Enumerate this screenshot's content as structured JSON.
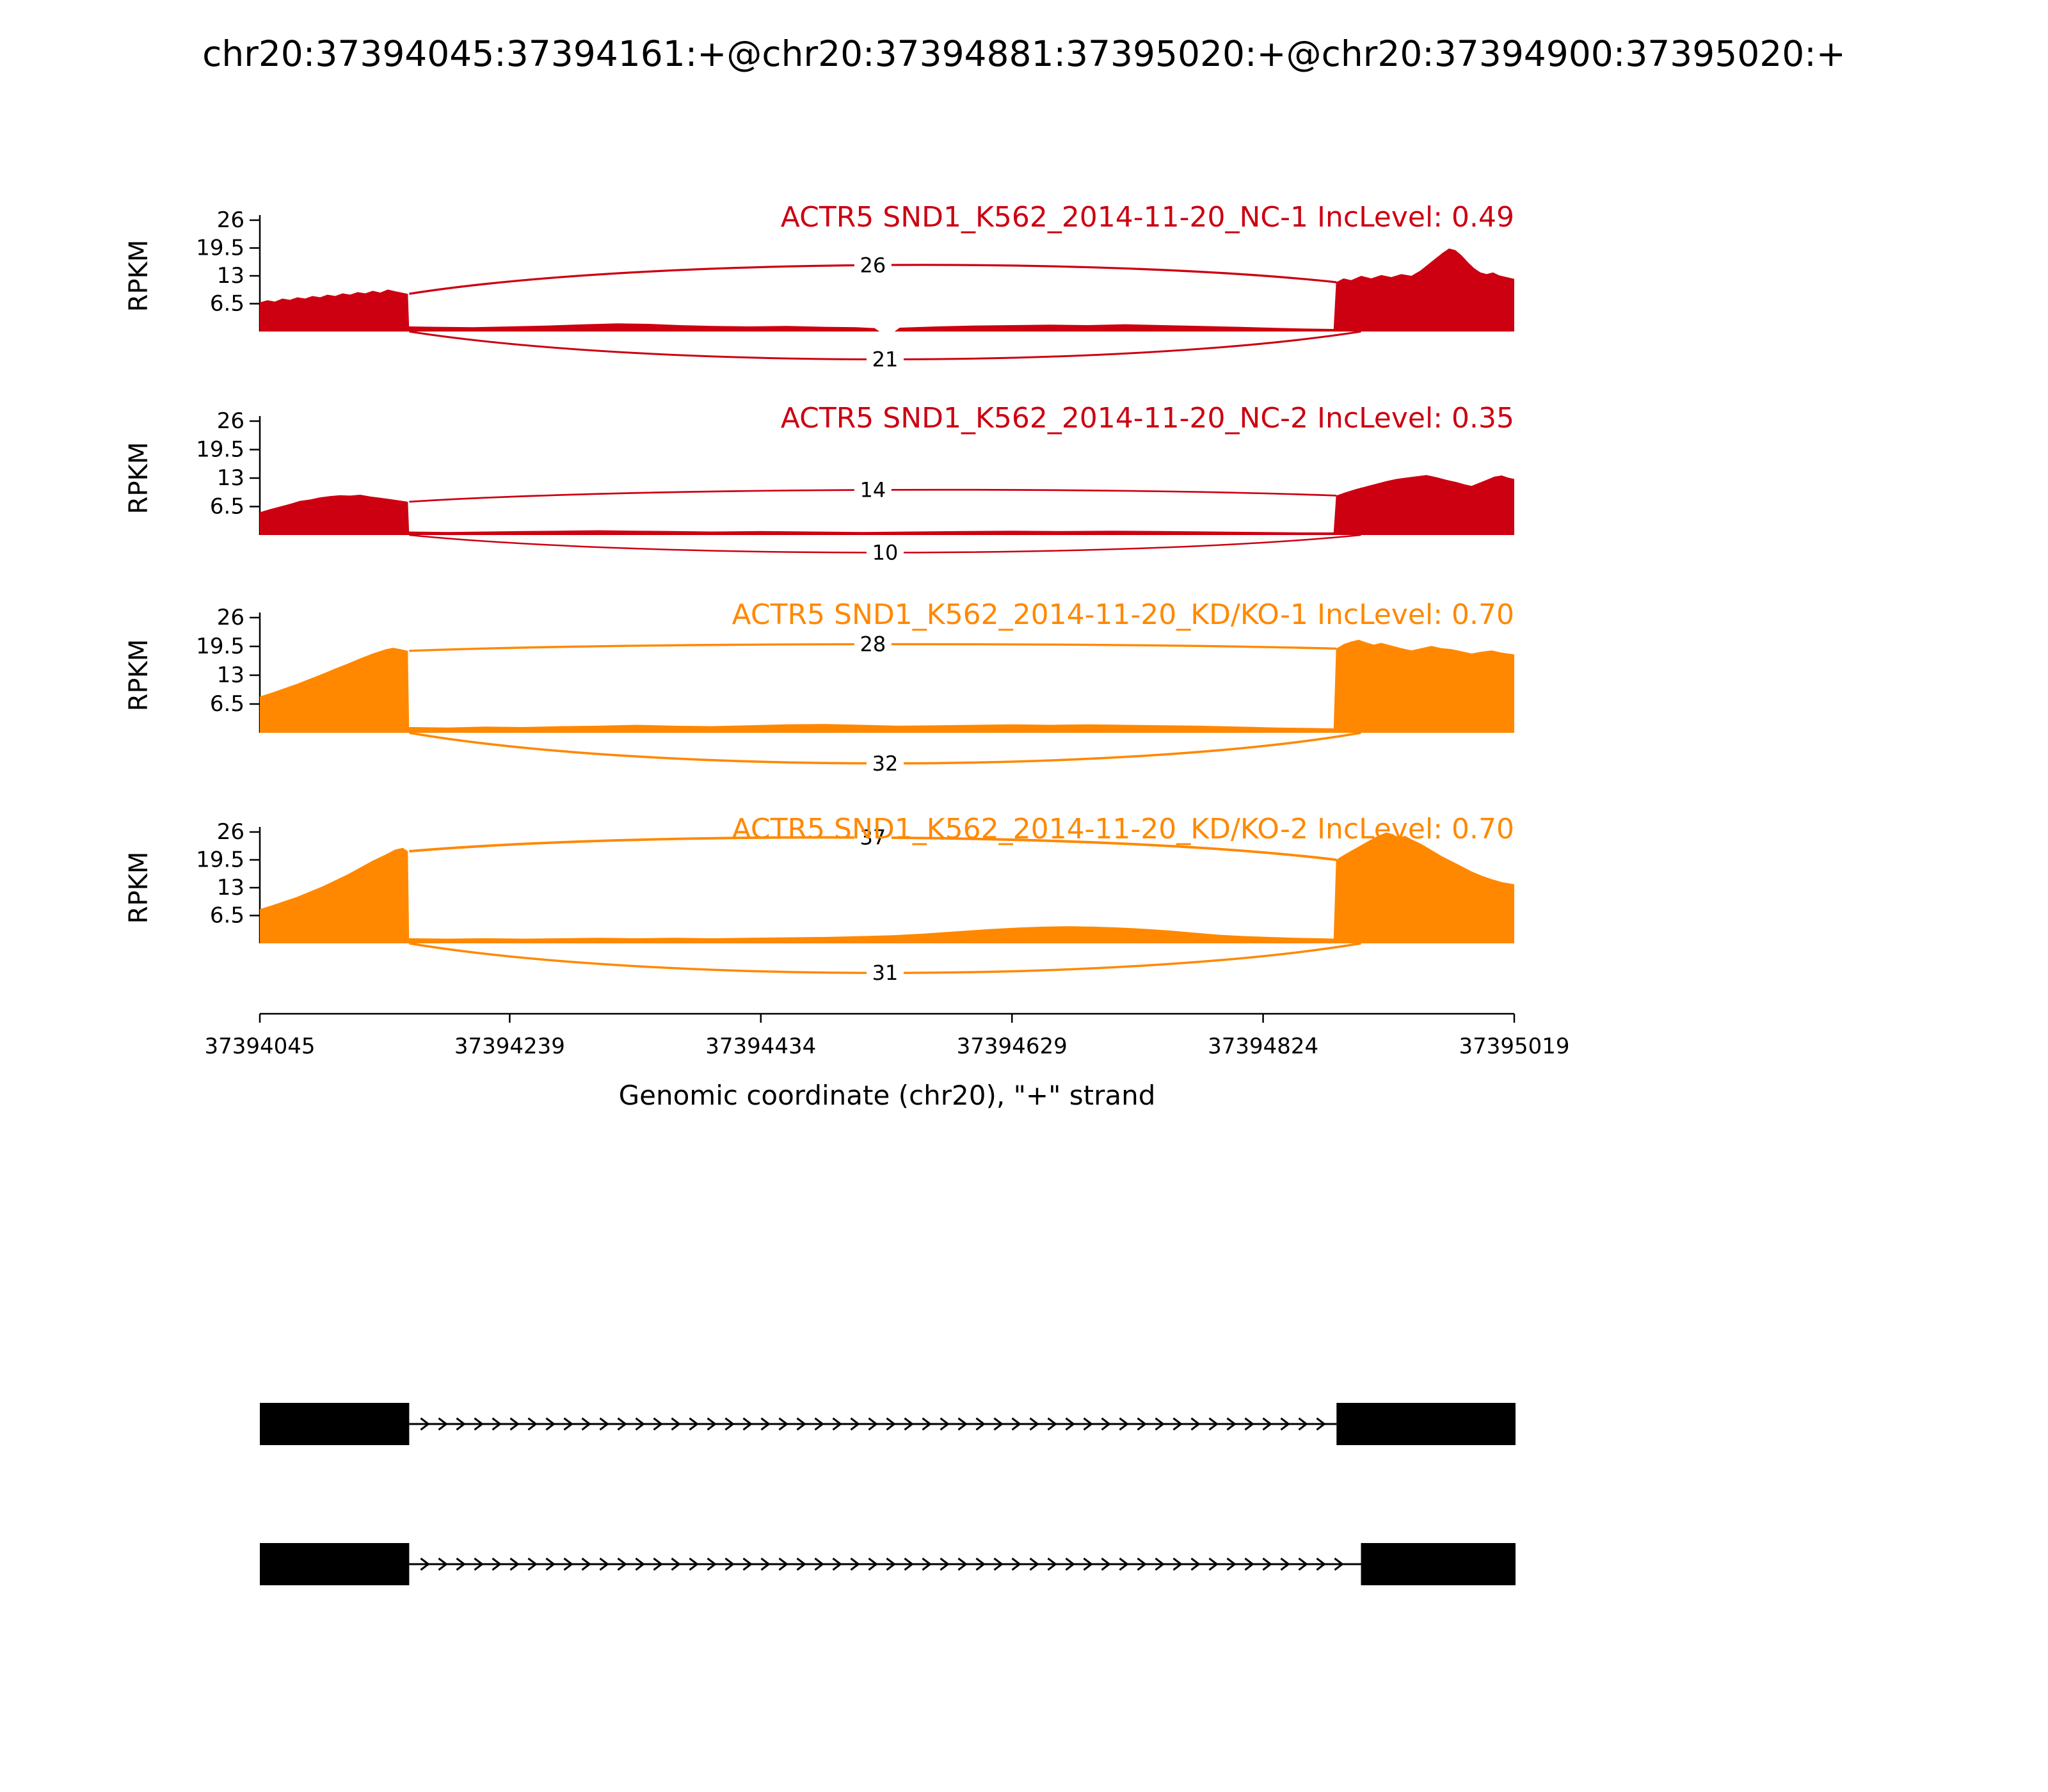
{
  "title": "chr20:37394045:37394161:+@chr20:37394881:37395020:+@chr20:37394900:37395020:+",
  "axes": {
    "ylabel": "RPKM",
    "yticks": [
      "6.5",
      "13",
      "19.5",
      "26"
    ],
    "ytick_values": [
      6.5,
      13,
      19.5,
      26
    ],
    "ymax": 26,
    "xlabel": "Genomic coordinate (chr20), \"+\" strand",
    "xticks": [
      37394045,
      37394239,
      37394434,
      37394629,
      37394824,
      37395019
    ],
    "xmin": 37394045,
    "xmax": 37395019
  },
  "chart_data": {
    "type": "area",
    "subtype": "sashimi-plot",
    "region": {
      "chrom": "chr20",
      "start": 37394045,
      "end": 37395019,
      "strand": "+"
    },
    "tracks": [
      {
        "label": "ACTR5 SND1_K562_2014-11-20_NC-1 IncLevel: 0.49",
        "color": "#CC0011",
        "junctions": [
          {
            "count": 26,
            "from": 37394161,
            "to": 37394881,
            "side": "up",
            "h1": 8.8,
            "h2": 11.5,
            "apex": 15.5
          },
          {
            "count": 21,
            "from": 37394161,
            "to": 37394900,
            "side": "down",
            "h1": 0,
            "h2": 0,
            "apex": -6.5
          }
        ],
        "coverage": [
          [
            0.0,
            6.8
          ],
          [
            0.006,
            7.3
          ],
          [
            0.012,
            7.0
          ],
          [
            0.018,
            7.7
          ],
          [
            0.024,
            7.4
          ],
          [
            0.03,
            8.0
          ],
          [
            0.036,
            7.7
          ],
          [
            0.042,
            8.3
          ],
          [
            0.048,
            8.0
          ],
          [
            0.054,
            8.6
          ],
          [
            0.06,
            8.3
          ],
          [
            0.066,
            8.9
          ],
          [
            0.072,
            8.6
          ],
          [
            0.078,
            9.2
          ],
          [
            0.084,
            8.9
          ],
          [
            0.09,
            9.5
          ],
          [
            0.096,
            9.1
          ],
          [
            0.102,
            9.8
          ],
          [
            0.108,
            9.4
          ],
          [
            0.113,
            9.1
          ],
          [
            0.118,
            8.8
          ],
          [
            0.119,
            1.2
          ],
          [
            0.14,
            1.1
          ],
          [
            0.17,
            1.0
          ],
          [
            0.2,
            1.2
          ],
          [
            0.23,
            1.4
          ],
          [
            0.26,
            1.7
          ],
          [
            0.285,
            1.9
          ],
          [
            0.31,
            1.8
          ],
          [
            0.335,
            1.5
          ],
          [
            0.36,
            1.3
          ],
          [
            0.39,
            1.2
          ],
          [
            0.42,
            1.3
          ],
          [
            0.45,
            1.1
          ],
          [
            0.475,
            1.0
          ],
          [
            0.49,
            0.8
          ],
          [
            0.494,
            0.0
          ],
          [
            0.506,
            0.0
          ],
          [
            0.51,
            0.9
          ],
          [
            0.54,
            1.2
          ],
          [
            0.57,
            1.4
          ],
          [
            0.6,
            1.5
          ],
          [
            0.63,
            1.6
          ],
          [
            0.66,
            1.5
          ],
          [
            0.69,
            1.7
          ],
          [
            0.72,
            1.5
          ],
          [
            0.75,
            1.3
          ],
          [
            0.78,
            1.1
          ],
          [
            0.805,
            0.9
          ],
          [
            0.83,
            0.7
          ],
          [
            0.856,
            0.6
          ],
          [
            0.858,
            11.5
          ],
          [
            0.864,
            12.4
          ],
          [
            0.87,
            12.0
          ],
          [
            0.878,
            13.0
          ],
          [
            0.886,
            12.4
          ],
          [
            0.894,
            13.2
          ],
          [
            0.902,
            12.7
          ],
          [
            0.91,
            13.4
          ],
          [
            0.918,
            13.0
          ],
          [
            0.925,
            14.2
          ],
          [
            0.931,
            15.6
          ],
          [
            0.937,
            17.0
          ],
          [
            0.943,
            18.4
          ],
          [
            0.948,
            19.4
          ],
          [
            0.953,
            19.0
          ],
          [
            0.958,
            17.8
          ],
          [
            0.963,
            16.2
          ],
          [
            0.968,
            14.8
          ],
          [
            0.973,
            13.8
          ],
          [
            0.978,
            13.4
          ],
          [
            0.983,
            13.8
          ],
          [
            0.988,
            13.1
          ],
          [
            0.994,
            12.7
          ],
          [
            1.0,
            12.3
          ]
        ]
      },
      {
        "label": "ACTR5 SND1_K562_2014-11-20_NC-2 IncLevel: 0.35",
        "color": "#CC0011",
        "junctions": [
          {
            "count": 14,
            "from": 37394161,
            "to": 37394881,
            "side": "up",
            "h1": 7.6,
            "h2": 9.0,
            "apex": 10.3
          },
          {
            "count": 10,
            "from": 37394161,
            "to": 37394900,
            "side": "down",
            "h1": 0,
            "h2": 0,
            "apex": -4.0
          }
        ],
        "coverage": [
          [
            0.0,
            5.2
          ],
          [
            0.008,
            5.9
          ],
          [
            0.016,
            6.5
          ],
          [
            0.024,
            7.1
          ],
          [
            0.032,
            7.8
          ],
          [
            0.04,
            8.1
          ],
          [
            0.048,
            8.6
          ],
          [
            0.056,
            8.9
          ],
          [
            0.064,
            9.1
          ],
          [
            0.072,
            9.0
          ],
          [
            0.08,
            9.2
          ],
          [
            0.088,
            8.8
          ],
          [
            0.096,
            8.5
          ],
          [
            0.104,
            8.2
          ],
          [
            0.111,
            7.9
          ],
          [
            0.118,
            7.6
          ],
          [
            0.119,
            0.8
          ],
          [
            0.15,
            0.7
          ],
          [
            0.18,
            0.8
          ],
          [
            0.21,
            0.9
          ],
          [
            0.24,
            1.0
          ],
          [
            0.27,
            1.1
          ],
          [
            0.3,
            1.0
          ],
          [
            0.33,
            0.9
          ],
          [
            0.36,
            0.8
          ],
          [
            0.4,
            0.9
          ],
          [
            0.44,
            0.8
          ],
          [
            0.48,
            0.7
          ],
          [
            0.52,
            0.8
          ],
          [
            0.56,
            0.9
          ],
          [
            0.6,
            1.0
          ],
          [
            0.64,
            0.9
          ],
          [
            0.68,
            1.0
          ],
          [
            0.72,
            0.9
          ],
          [
            0.76,
            0.8
          ],
          [
            0.8,
            0.7
          ],
          [
            0.83,
            0.6
          ],
          [
            0.856,
            0.6
          ],
          [
            0.858,
            9.0
          ],
          [
            0.866,
            9.8
          ],
          [
            0.874,
            10.5
          ],
          [
            0.882,
            11.1
          ],
          [
            0.89,
            11.7
          ],
          [
            0.898,
            12.3
          ],
          [
            0.906,
            12.8
          ],
          [
            0.914,
            13.1
          ],
          [
            0.922,
            13.4
          ],
          [
            0.93,
            13.7
          ],
          [
            0.938,
            13.2
          ],
          [
            0.946,
            12.6
          ],
          [
            0.954,
            12.1
          ],
          [
            0.96,
            11.6
          ],
          [
            0.966,
            11.2
          ],
          [
            0.972,
            11.9
          ],
          [
            0.978,
            12.6
          ],
          [
            0.984,
            13.3
          ],
          [
            0.99,
            13.6
          ],
          [
            0.995,
            13.1
          ],
          [
            1.0,
            12.8
          ]
        ]
      },
      {
        "label": "ACTR5 SND1_K562_2014-11-20_KD/KO-1 IncLevel: 0.70",
        "color": "#FF8800",
        "junctions": [
          {
            "count": 28,
            "from": 37394161,
            "to": 37394881,
            "side": "up",
            "h1": 18.5,
            "h2": 19.0,
            "apex": 20.0
          },
          {
            "count": 32,
            "from": 37394161,
            "to": 37394900,
            "side": "down",
            "h1": 0,
            "h2": 0,
            "apex": -6.9
          }
        ],
        "coverage": [
          [
            0.0,
            8.2
          ],
          [
            0.01,
            9.1
          ],
          [
            0.02,
            10.1
          ],
          [
            0.03,
            11.1
          ],
          [
            0.04,
            12.2
          ],
          [
            0.05,
            13.3
          ],
          [
            0.06,
            14.5
          ],
          [
            0.07,
            15.6
          ],
          [
            0.08,
            16.8
          ],
          [
            0.09,
            17.9
          ],
          [
            0.1,
            18.8
          ],
          [
            0.106,
            19.2
          ],
          [
            0.112,
            18.9
          ],
          [
            0.118,
            18.5
          ],
          [
            0.119,
            1.3
          ],
          [
            0.15,
            1.2
          ],
          [
            0.18,
            1.4
          ],
          [
            0.21,
            1.3
          ],
          [
            0.24,
            1.5
          ],
          [
            0.27,
            1.6
          ],
          [
            0.3,
            1.8
          ],
          [
            0.33,
            1.6
          ],
          [
            0.36,
            1.5
          ],
          [
            0.39,
            1.7
          ],
          [
            0.42,
            1.9
          ],
          [
            0.45,
            2.0
          ],
          [
            0.48,
            1.8
          ],
          [
            0.51,
            1.6
          ],
          [
            0.54,
            1.7
          ],
          [
            0.57,
            1.8
          ],
          [
            0.6,
            1.9
          ],
          [
            0.63,
            1.8
          ],
          [
            0.66,
            1.9
          ],
          [
            0.69,
            1.8
          ],
          [
            0.72,
            1.7
          ],
          [
            0.75,
            1.6
          ],
          [
            0.78,
            1.4
          ],
          [
            0.81,
            1.2
          ],
          [
            0.835,
            1.1
          ],
          [
            0.856,
            1.0
          ],
          [
            0.858,
            19.0
          ],
          [
            0.864,
            20.0
          ],
          [
            0.87,
            20.6
          ],
          [
            0.876,
            21.0
          ],
          [
            0.882,
            20.4
          ],
          [
            0.888,
            19.9
          ],
          [
            0.894,
            20.3
          ],
          [
            0.902,
            19.7
          ],
          [
            0.91,
            19.1
          ],
          [
            0.918,
            18.6
          ],
          [
            0.926,
            19.1
          ],
          [
            0.934,
            19.6
          ],
          [
            0.942,
            19.1
          ],
          [
            0.95,
            18.9
          ],
          [
            0.958,
            18.4
          ],
          [
            0.966,
            17.9
          ],
          [
            0.974,
            18.3
          ],
          [
            0.982,
            18.6
          ],
          [
            0.99,
            18.1
          ],
          [
            1.0,
            17.7
          ]
        ]
      },
      {
        "label": "ACTR5 SND1_K562_2014-11-20_KD/KO-2 IncLevel: 0.70",
        "color": "#FF8800",
        "junctions": [
          {
            "count": 37,
            "from": 37394161,
            "to": 37394881,
            "side": "up",
            "h1": 21.5,
            "h2": 19.5,
            "apex": 24.7
          },
          {
            "count": 31,
            "from": 37394161,
            "to": 37394900,
            "side": "down",
            "h1": 0,
            "h2": 0,
            "apex": -6.9
          }
        ],
        "coverage": [
          [
            0.0,
            8.0
          ],
          [
            0.01,
            8.9
          ],
          [
            0.02,
            9.9
          ],
          [
            0.03,
            10.9
          ],
          [
            0.04,
            12.1
          ],
          [
            0.05,
            13.3
          ],
          [
            0.06,
            14.7
          ],
          [
            0.07,
            16.1
          ],
          [
            0.08,
            17.7
          ],
          [
            0.09,
            19.3
          ],
          [
            0.1,
            20.7
          ],
          [
            0.108,
            21.9
          ],
          [
            0.114,
            22.3
          ],
          [
            0.118,
            21.5
          ],
          [
            0.119,
            1.2
          ],
          [
            0.15,
            1.1
          ],
          [
            0.18,
            1.2
          ],
          [
            0.21,
            1.1
          ],
          [
            0.24,
            1.2
          ],
          [
            0.27,
            1.3
          ],
          [
            0.3,
            1.2
          ],
          [
            0.33,
            1.3
          ],
          [
            0.36,
            1.2
          ],
          [
            0.39,
            1.3
          ],
          [
            0.42,
            1.4
          ],
          [
            0.45,
            1.5
          ],
          [
            0.48,
            1.7
          ],
          [
            0.505,
            1.9
          ],
          [
            0.53,
            2.3
          ],
          [
            0.555,
            2.8
          ],
          [
            0.58,
            3.3
          ],
          [
            0.605,
            3.7
          ],
          [
            0.625,
            3.9
          ],
          [
            0.645,
            4.0
          ],
          [
            0.665,
            3.9
          ],
          [
            0.685,
            3.7
          ],
          [
            0.705,
            3.4
          ],
          [
            0.725,
            3.0
          ],
          [
            0.745,
            2.5
          ],
          [
            0.765,
            2.0
          ],
          [
            0.785,
            1.7
          ],
          [
            0.805,
            1.5
          ],
          [
            0.825,
            1.3
          ],
          [
            0.845,
            1.2
          ],
          [
            0.856,
            1.1
          ],
          [
            0.858,
            19.5
          ],
          [
            0.864,
            20.6
          ],
          [
            0.87,
            21.6
          ],
          [
            0.876,
            22.6
          ],
          [
            0.882,
            23.6
          ],
          [
            0.888,
            24.6
          ],
          [
            0.893,
            25.3
          ],
          [
            0.898,
            25.9
          ],
          [
            0.903,
            25.5
          ],
          [
            0.908,
            24.7
          ],
          [
            0.913,
            25.1
          ],
          [
            0.918,
            24.3
          ],
          [
            0.926,
            23.2
          ],
          [
            0.934,
            21.8
          ],
          [
            0.942,
            20.4
          ],
          [
            0.95,
            19.2
          ],
          [
            0.958,
            18.0
          ],
          [
            0.966,
            16.8
          ],
          [
            0.974,
            15.8
          ],
          [
            0.982,
            15.0
          ],
          [
            0.99,
            14.3
          ],
          [
            1.0,
            13.8
          ]
        ]
      }
    ],
    "isoforms": [
      {
        "exons": [
          [
            37394045,
            37394161
          ],
          [
            37394881,
            37395020
          ]
        ]
      },
      {
        "exons": [
          [
            37394045,
            37394161
          ],
          [
            37394900,
            37395020
          ]
        ]
      }
    ]
  }
}
